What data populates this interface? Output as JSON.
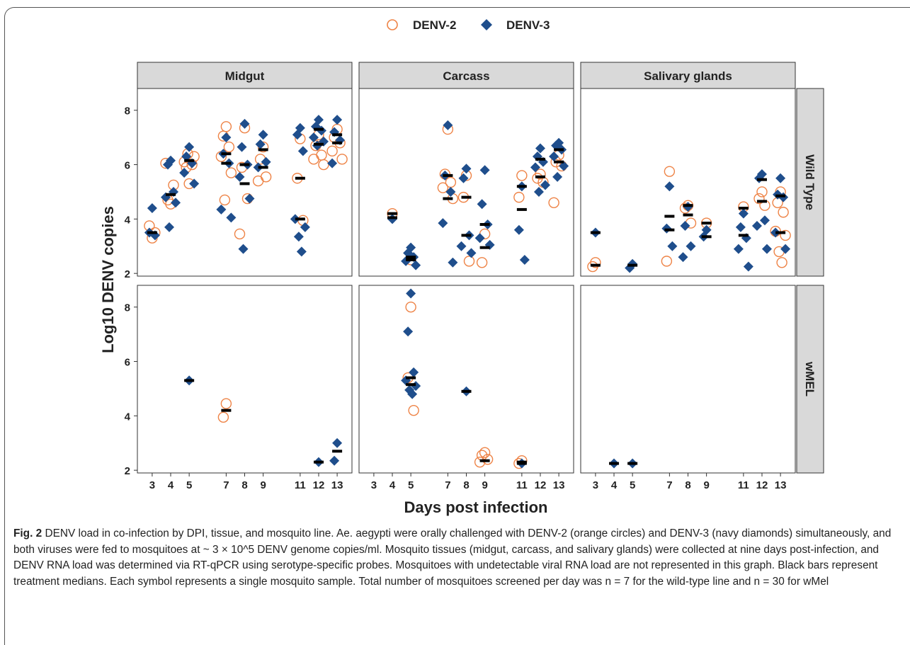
{
  "chart_data": {
    "type": "scatter",
    "legend": {
      "placement": "top-center",
      "entries": [
        {
          "label": "DENV-2",
          "marker": "circle",
          "color": "#EE8346"
        },
        {
          "label": "DENV-3",
          "marker": "diamond",
          "color": "#1F4E8C"
        }
      ]
    },
    "colors": {
      "DENV-2": "#EE8346",
      "DENV-3": "#1F4E8C",
      "median": "#000000",
      "strip": "#D9D9D9"
    },
    "xlabel": "Days post infection",
    "ylabel": "Log10 DENV copies",
    "xticks": [
      3,
      4,
      5,
      7,
      8,
      9,
      11,
      12,
      13
    ],
    "yticks": [
      2,
      4,
      6,
      8
    ],
    "ylim": [
      1.9,
      8.8
    ],
    "columns": [
      "Midgut",
      "Carcass",
      "Salivary glands"
    ],
    "rows": [
      "Wild Type",
      "wMEL"
    ],
    "panels": [
      {
        "tissue": "Midgut",
        "line": "Wild Type",
        "denv2": [
          [
            3,
            3.3
          ],
          [
            3,
            3.75
          ],
          [
            3,
            3.5
          ],
          [
            4,
            4.55
          ],
          [
            4,
            4.7
          ],
          [
            4,
            5.25
          ],
          [
            4,
            6.05
          ],
          [
            5,
            5.3
          ],
          [
            5,
            5.9
          ],
          [
            5,
            6.0
          ],
          [
            5,
            6.1
          ],
          [
            5,
            6.3
          ],
          [
            5,
            6.4
          ],
          [
            7,
            7.4
          ],
          [
            7,
            7.05
          ],
          [
            7,
            6.65
          ],
          [
            7,
            6.3
          ],
          [
            7,
            5.7
          ],
          [
            7,
            4.7
          ],
          [
            8,
            7.35
          ],
          [
            8,
            5.9
          ],
          [
            8,
            4.75
          ],
          [
            8,
            3.45
          ],
          [
            9,
            6.65
          ],
          [
            9,
            6.2
          ],
          [
            9,
            5.55
          ],
          [
            9,
            5.4
          ],
          [
            11,
            6.95
          ],
          [
            11,
            5.5
          ],
          [
            11,
            3.95
          ],
          [
            12,
            7.1
          ],
          [
            12,
            6.7
          ],
          [
            12,
            6.35
          ],
          [
            12,
            6.2
          ],
          [
            12,
            6.0
          ],
          [
            13,
            7.3
          ],
          [
            13,
            7.0
          ],
          [
            13,
            6.8
          ],
          [
            13,
            6.5
          ],
          [
            13,
            6.2
          ]
        ],
        "denv3": [
          [
            3,
            4.4
          ],
          [
            3,
            3.5
          ],
          [
            3,
            3.4
          ],
          [
            4,
            6.15
          ],
          [
            4,
            6.0
          ],
          [
            4,
            5.0
          ],
          [
            4,
            4.8
          ],
          [
            4,
            4.6
          ],
          [
            4,
            3.7
          ],
          [
            5,
            6.65
          ],
          [
            5,
            6.3
          ],
          [
            5,
            6.05
          ],
          [
            5,
            5.7
          ],
          [
            5,
            5.3
          ],
          [
            7,
            7.0
          ],
          [
            7,
            6.4
          ],
          [
            7,
            6.05
          ],
          [
            7,
            4.35
          ],
          [
            7,
            4.05
          ],
          [
            8,
            7.5
          ],
          [
            8,
            6.65
          ],
          [
            8,
            6.0
          ],
          [
            8,
            5.55
          ],
          [
            8,
            4.75
          ],
          [
            8,
            2.9
          ],
          [
            9,
            7.1
          ],
          [
            9,
            6.75
          ],
          [
            9,
            6.1
          ],
          [
            9,
            5.9
          ],
          [
            11,
            7.35
          ],
          [
            11,
            7.1
          ],
          [
            11,
            6.5
          ],
          [
            11,
            4.0
          ],
          [
            11,
            3.7
          ],
          [
            11,
            3.35
          ],
          [
            11,
            2.8
          ],
          [
            12,
            7.65
          ],
          [
            12,
            7.4
          ],
          [
            12,
            7.25
          ],
          [
            12,
            7.0
          ],
          [
            12,
            6.85
          ],
          [
            12,
            6.7
          ],
          [
            13,
            7.65
          ],
          [
            13,
            7.2
          ],
          [
            13,
            6.9
          ],
          [
            13,
            6.05
          ]
        ],
        "medians": [
          [
            3,
            3.5
          ],
          [
            4,
            4.9
          ],
          [
            5,
            6.15
          ],
          [
            7,
            6.4
          ],
          [
            7,
            6.05
          ],
          [
            8,
            5.3
          ],
          [
            8,
            6.0
          ],
          [
            9,
            6.55
          ],
          [
            9,
            5.9
          ],
          [
            11,
            5.5
          ],
          [
            11,
            4.0
          ],
          [
            12,
            6.75
          ],
          [
            12,
            7.3
          ],
          [
            13,
            6.8
          ],
          [
            13,
            7.1
          ]
        ]
      },
      {
        "tissue": "Carcass",
        "line": "Wild Type",
        "denv2": [
          [
            4,
            4.2
          ],
          [
            5,
            2.5
          ],
          [
            7,
            7.3
          ],
          [
            7,
            5.65
          ],
          [
            7,
            5.35
          ],
          [
            7,
            5.15
          ],
          [
            7,
            4.75
          ],
          [
            8,
            5.6
          ],
          [
            8,
            4.8
          ],
          [
            8,
            2.45
          ],
          [
            9,
            3.45
          ],
          [
            9,
            2.4
          ],
          [
            11,
            5.6
          ],
          [
            11,
            4.8
          ],
          [
            12,
            5.65
          ],
          [
            12,
            5.5
          ],
          [
            12,
            5.35
          ],
          [
            13,
            6.35
          ],
          [
            13,
            6.1
          ],
          [
            13,
            5.95
          ],
          [
            13,
            4.6
          ]
        ],
        "denv3": [
          [
            4,
            4.0
          ],
          [
            5,
            2.95
          ],
          [
            5,
            2.75
          ],
          [
            5,
            2.6
          ],
          [
            5,
            2.45
          ],
          [
            5,
            2.3
          ],
          [
            7,
            7.45
          ],
          [
            7,
            5.6
          ],
          [
            7,
            5.0
          ],
          [
            7,
            3.85
          ],
          [
            7,
            2.4
          ],
          [
            8,
            5.85
          ],
          [
            8,
            5.5
          ],
          [
            8,
            3.4
          ],
          [
            8,
            3.0
          ],
          [
            8,
            2.75
          ],
          [
            9,
            5.8
          ],
          [
            9,
            4.55
          ],
          [
            9,
            3.8
          ],
          [
            9,
            3.3
          ],
          [
            9,
            3.05
          ],
          [
            11,
            5.2
          ],
          [
            11,
            3.6
          ],
          [
            11,
            2.5
          ],
          [
            12,
            6.6
          ],
          [
            12,
            6.3
          ],
          [
            12,
            6.1
          ],
          [
            12,
            5.9
          ],
          [
            12,
            5.25
          ],
          [
            12,
            5.0
          ],
          [
            13,
            6.8
          ],
          [
            13,
            6.7
          ],
          [
            13,
            6.55
          ],
          [
            13,
            6.3
          ],
          [
            13,
            5.95
          ],
          [
            13,
            5.55
          ]
        ],
        "medians": [
          [
            4,
            4.2
          ],
          [
            4,
            4.05
          ],
          [
            5,
            2.5
          ],
          [
            5,
            2.6
          ],
          [
            7,
            5.6
          ],
          [
            7,
            4.75
          ],
          [
            8,
            4.8
          ],
          [
            8,
            3.4
          ],
          [
            9,
            3.8
          ],
          [
            9,
            2.95
          ],
          [
            11,
            5.2
          ],
          [
            11,
            4.35
          ],
          [
            12,
            5.55
          ],
          [
            12,
            6.2
          ],
          [
            13,
            6.1
          ],
          [
            13,
            6.55
          ]
        ]
      },
      {
        "tissue": "Salivary glands",
        "line": "Wild Type",
        "denv2": [
          [
            3,
            2.4
          ],
          [
            3,
            2.25
          ],
          [
            7,
            5.75
          ],
          [
            7,
            2.45
          ],
          [
            8,
            4.5
          ],
          [
            8,
            4.4
          ],
          [
            8,
            3.85
          ],
          [
            9,
            3.85
          ],
          [
            11,
            4.45
          ],
          [
            12,
            5.0
          ],
          [
            12,
            4.75
          ],
          [
            12,
            4.5
          ],
          [
            13,
            5.0
          ],
          [
            13,
            4.6
          ],
          [
            13,
            4.25
          ],
          [
            13,
            3.55
          ],
          [
            13,
            3.4
          ],
          [
            13,
            2.8
          ],
          [
            13,
            2.4
          ]
        ],
        "denv3": [
          [
            3,
            3.5
          ],
          [
            5,
            2.35
          ],
          [
            5,
            2.2
          ],
          [
            7,
            5.2
          ],
          [
            7,
            3.65
          ],
          [
            7,
            3.0
          ],
          [
            8,
            4.45
          ],
          [
            8,
            3.75
          ],
          [
            8,
            3.0
          ],
          [
            8,
            2.6
          ],
          [
            9,
            3.6
          ],
          [
            9,
            3.35
          ],
          [
            11,
            4.2
          ],
          [
            11,
            3.7
          ],
          [
            11,
            3.3
          ],
          [
            11,
            2.9
          ],
          [
            11,
            2.25
          ],
          [
            12,
            5.65
          ],
          [
            12,
            5.5
          ],
          [
            12,
            3.95
          ],
          [
            12,
            3.75
          ],
          [
            12,
            2.9
          ],
          [
            13,
            5.5
          ],
          [
            13,
            4.9
          ],
          [
            13,
            4.8
          ],
          [
            13,
            3.5
          ],
          [
            13,
            2.9
          ]
        ],
        "medians": [
          [
            3,
            3.5
          ],
          [
            3,
            2.3
          ],
          [
            5,
            2.3
          ],
          [
            7,
            4.1
          ],
          [
            7,
            3.6
          ],
          [
            8,
            4.5
          ],
          [
            8,
            4.15
          ],
          [
            9,
            3.85
          ],
          [
            9,
            3.35
          ],
          [
            11,
            4.4
          ],
          [
            11,
            3.4
          ],
          [
            12,
            4.65
          ],
          [
            12,
            5.45
          ],
          [
            13,
            3.5
          ],
          [
            13,
            4.85
          ]
        ]
      },
      {
        "tissue": "Midgut",
        "line": "wMEL",
        "denv2": [
          [
            7,
            4.45
          ],
          [
            7,
            3.95
          ]
        ],
        "denv3": [
          [
            5,
            5.3
          ],
          [
            12,
            2.3
          ],
          [
            13,
            3.0
          ],
          [
            13,
            2.35
          ]
        ],
        "medians": [
          [
            5,
            5.3
          ],
          [
            7,
            4.2
          ],
          [
            12,
            2.3
          ],
          [
            13,
            2.7
          ]
        ]
      },
      {
        "tissue": "Carcass",
        "line": "wMEL",
        "denv2": [
          [
            5,
            8.0
          ],
          [
            5,
            5.4
          ],
          [
            5,
            4.2
          ],
          [
            9,
            2.65
          ],
          [
            9,
            2.55
          ],
          [
            9,
            2.4
          ],
          [
            9,
            2.3
          ],
          [
            11,
            2.35
          ],
          [
            11,
            2.25
          ]
        ],
        "denv3": [
          [
            5,
            8.5
          ],
          [
            5,
            7.1
          ],
          [
            5,
            5.6
          ],
          [
            5,
            5.3
          ],
          [
            5,
            5.1
          ],
          [
            5,
            4.95
          ],
          [
            5,
            4.8
          ],
          [
            8,
            4.9
          ],
          [
            11,
            2.25
          ]
        ],
        "medians": [
          [
            5,
            5.4
          ],
          [
            5,
            5.15
          ],
          [
            8,
            4.9
          ],
          [
            9,
            2.35
          ],
          [
            11,
            2.3
          ],
          [
            11,
            2.25
          ]
        ]
      },
      {
        "tissue": "Salivary glands",
        "line": "wMEL",
        "denv2": [],
        "denv3": [
          [
            4,
            2.25
          ],
          [
            5,
            2.25
          ]
        ],
        "medians": [
          [
            4,
            2.25
          ],
          [
            5,
            2.25
          ]
        ]
      }
    ]
  },
  "caption": {
    "label": "Fig. 2",
    "text": "DENV load in co-infection by DPI, tissue, and mosquito line. Ae. aegypti were orally challenged with DENV-2 (orange circles) and DENV-3 (navy diamonds) simultaneously, and both viruses were fed to mosquitoes at ~ 3 × 10^5 DENV genome copies/ml. Mosquito tissues (midgut, carcass, and salivary glands) were collected at nine days post-infection, and DENV RNA load was determined via RT-qPCR using serotype-specific probes. Mosquitoes with undetectable viral RNA load are not represented in this graph. Black bars represent treatment medians. Each symbol represents a single mosquito sample. Total number of mosquitoes screened per day was n = 7 for the wild-type line and n = 30 for wMel"
  }
}
